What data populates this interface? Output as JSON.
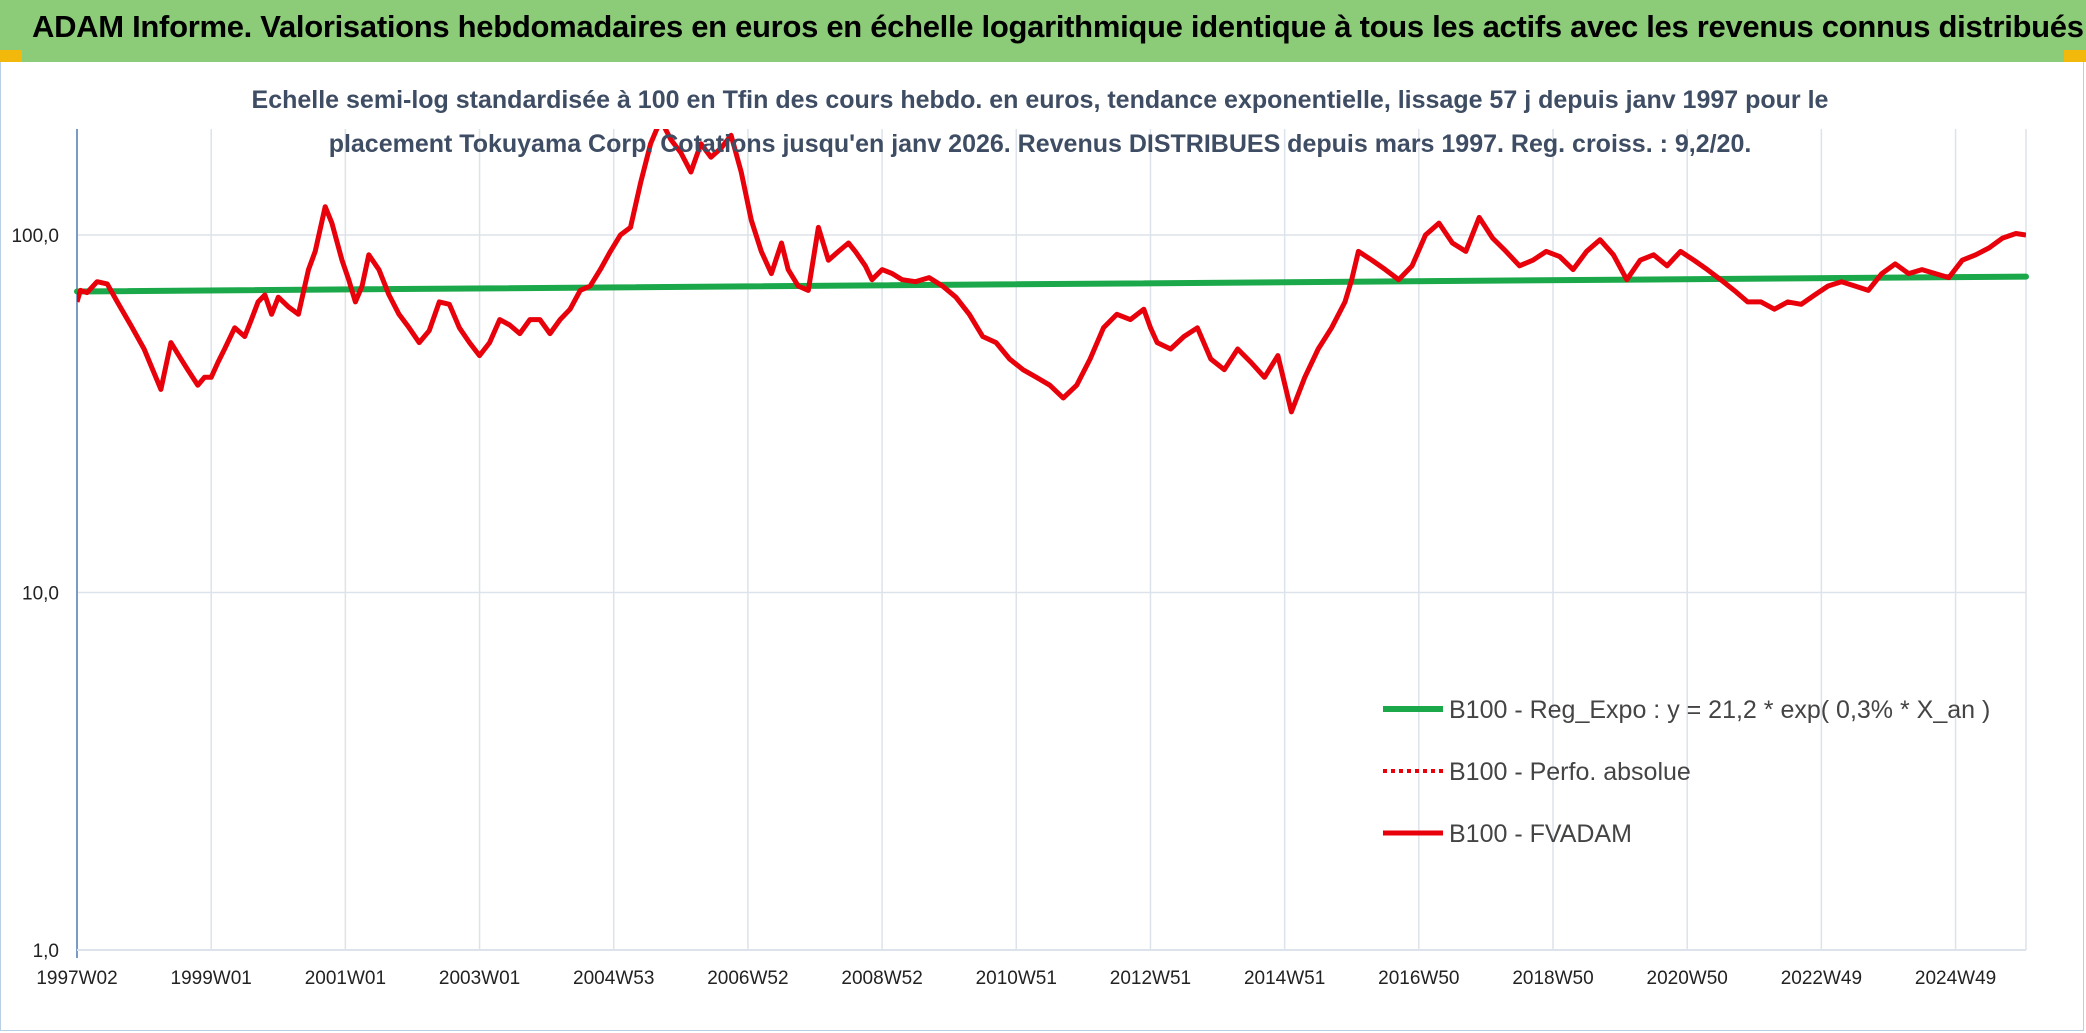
{
  "header": {
    "title": "ADAM Informe. Valorisations hebdomadaires en euros en échelle logarithmique identique à tous les actifs avec les revenus connus distribués"
  },
  "colors": {
    "header_bg": "#8ccc78",
    "trend": "#1aa84a",
    "fvadam": "#e8000b",
    "perf": "#e8000b",
    "grid": "#dde3ea",
    "axis": "#7a9cc4",
    "corner": "#f2b90c"
  },
  "chart_data": {
    "type": "line",
    "title_lines": [
      "Echelle semi-log standardisée à 100 en Tfin des cours hebdo. en euros, tendance exponentielle, lissage 57 j depuis janv 1997 pour le",
      "placement Tokuyama Corp. Cotations jusqu'en janv 2026. Revenus DISTRIBUES depuis mars 1997. Reg. croiss. : 9,2/20."
    ],
    "y_scale": "log",
    "ylim": [
      1,
      200
    ],
    "y_ticks": [
      {
        "value": 1,
        "label": "1,0"
      },
      {
        "value": 10,
        "label": "10,0"
      },
      {
        "value": 100,
        "label": "100,0"
      }
    ],
    "xlim": [
      1997.0,
      2026.05
    ],
    "x_ticks": [
      {
        "value": 1997.0,
        "label": "1997W02"
      },
      {
        "value": 1999.0,
        "label": "1999W01"
      },
      {
        "value": 2001.0,
        "label": "2001W01"
      },
      {
        "value": 2003.0,
        "label": "2003W01"
      },
      {
        "value": 2005.0,
        "label": "2004W53"
      },
      {
        "value": 2007.0,
        "label": "2006W52"
      },
      {
        "value": 2009.0,
        "label": "2008W52"
      },
      {
        "value": 2011.0,
        "label": "2010W51"
      },
      {
        "value": 2013.0,
        "label": "2012W51"
      },
      {
        "value": 2015.0,
        "label": "2014W51"
      },
      {
        "value": 2017.0,
        "label": "2016W50"
      },
      {
        "value": 2019.0,
        "label": "2018W50"
      },
      {
        "value": 2021.0,
        "label": "2020W50"
      },
      {
        "value": 2023.0,
        "label": "2022W49"
      },
      {
        "value": 2025.0,
        "label": "2024W49"
      }
    ],
    "grid": "vertical",
    "legend_position": "bottom-right",
    "series": [
      {
        "name": "B100 - Reg_Expo : y = 21,2 * exp( 0,3% *  X_an )",
        "style": "solid-thick",
        "x": [
          1997.0,
          2026.05
        ],
        "y": [
          69.5,
          76.5
        ]
      },
      {
        "name": "B100 - Perfo. absolue",
        "style": "dotted",
        "x": [],
        "y": []
      },
      {
        "name": "B100 - FVADAM",
        "style": "solid",
        "x": [
          1997.0,
          1997.05,
          1997.15,
          1997.3,
          1997.45,
          1997.6,
          1997.8,
          1998.0,
          1998.25,
          1998.4,
          1998.55,
          1998.65,
          1998.8,
          1998.9,
          1999.0,
          1999.1,
          1999.2,
          1999.35,
          1999.5,
          1999.6,
          1999.7,
          1999.8,
          1999.9,
          2000.0,
          2000.15,
          2000.3,
          2000.45,
          2000.55,
          2000.7,
          2000.8,
          2000.95,
          2001.05,
          2001.15,
          2001.25,
          2001.35,
          2001.5,
          2001.65,
          2001.8,
          2001.95,
          2002.1,
          2002.25,
          2002.4,
          2002.55,
          2002.7,
          2002.85,
          2003.0,
          2003.15,
          2003.3,
          2003.45,
          2003.6,
          2003.75,
          2003.9,
          2004.05,
          2004.2,
          2004.35,
          2004.5,
          2004.65,
          2004.8,
          2004.95,
          2005.1,
          2005.25,
          2005.4,
          2005.55,
          2005.7,
          2005.85,
          2006.0,
          2006.15,
          2006.3,
          2006.45,
          2006.6,
          2006.75,
          2006.9,
          2007.05,
          2007.2,
          2007.35,
          2007.5,
          2007.6,
          2007.75,
          2007.9,
          2008.05,
          2008.2,
          2008.35,
          2008.5,
          2008.6,
          2008.75,
          2008.85,
          2009.0,
          2009.15,
          2009.3,
          2009.5,
          2009.7,
          2009.9,
          2010.1,
          2010.3,
          2010.5,
          2010.7,
          2010.9,
          2011.1,
          2011.3,
          2011.5,
          2011.7,
          2011.9,
          2012.1,
          2012.3,
          2012.5,
          2012.7,
          2012.9,
          2013.0,
          2013.1,
          2013.3,
          2013.5,
          2013.7,
          2013.9,
          2014.1,
          2014.3,
          2014.5,
          2014.7,
          2014.9,
          2015.1,
          2015.3,
          2015.5,
          2015.7,
          2015.9,
          2016.0,
          2016.1,
          2016.3,
          2016.5,
          2016.7,
          2016.9,
          2017.1,
          2017.3,
          2017.5,
          2017.7,
          2017.9,
          2018.1,
          2018.3,
          2018.5,
          2018.7,
          2018.9,
          2019.1,
          2019.3,
          2019.5,
          2019.7,
          2019.9,
          2020.1,
          2020.3,
          2020.5,
          2020.7,
          2020.9,
          2021.1,
          2021.3,
          2021.5,
          2021.7,
          2021.9,
          2022.1,
          2022.3,
          2022.5,
          2022.7,
          2022.9,
          2023.1,
          2023.3,
          2023.5,
          2023.7,
          2023.9,
          2024.1,
          2024.3,
          2024.5,
          2024.7,
          2024.9,
          2025.1,
          2025.3,
          2025.5,
          2025.7,
          2025.9,
          2026.05
        ],
        "y": [
          65,
          70,
          69,
          74,
          73,
          65,
          56,
          48,
          37,
          50,
          45,
          42,
          38,
          40,
          40,
          44,
          48,
          55,
          52,
          58,
          65,
          68,
          60,
          67,
          63,
          60,
          80,
          90,
          120,
          108,
          85,
          75,
          65,
          72,
          88,
          80,
          68,
          60,
          55,
          50,
          54,
          65,
          64,
          55,
          50,
          46,
          50,
          58,
          56,
          53,
          58,
          58,
          53,
          58,
          62,
          70,
          72,
          80,
          90,
          100,
          105,
          140,
          180,
          210,
          185,
          170,
          150,
          180,
          165,
          175,
          190,
          150,
          110,
          90,
          78,
          95,
          80,
          72,
          70,
          105,
          85,
          90,
          95,
          90,
          82,
          75,
          80,
          78,
          75,
          74,
          76,
          72,
          67,
          60,
          52,
          50,
          45,
          42,
          40,
          38,
          35,
          38,
          45,
          55,
          60,
          58,
          62,
          55,
          50,
          48,
          52,
          55,
          45,
          42,
          48,
          44,
          40,
          46,
          32,
          40,
          48,
          55,
          65,
          75,
          90,
          85,
          80,
          75,
          82,
          100,
          108,
          95,
          90,
          112,
          98,
          90,
          82,
          85,
          90,
          87,
          80,
          90,
          97,
          88,
          75,
          85,
          88,
          82,
          90,
          85,
          80,
          75,
          70,
          65,
          65,
          62,
          65,
          64,
          68,
          72,
          74,
          72,
          70,
          78,
          83,
          78,
          80,
          78,
          76,
          85,
          88,
          92,
          98,
          101,
          100
        ]
      }
    ]
  }
}
